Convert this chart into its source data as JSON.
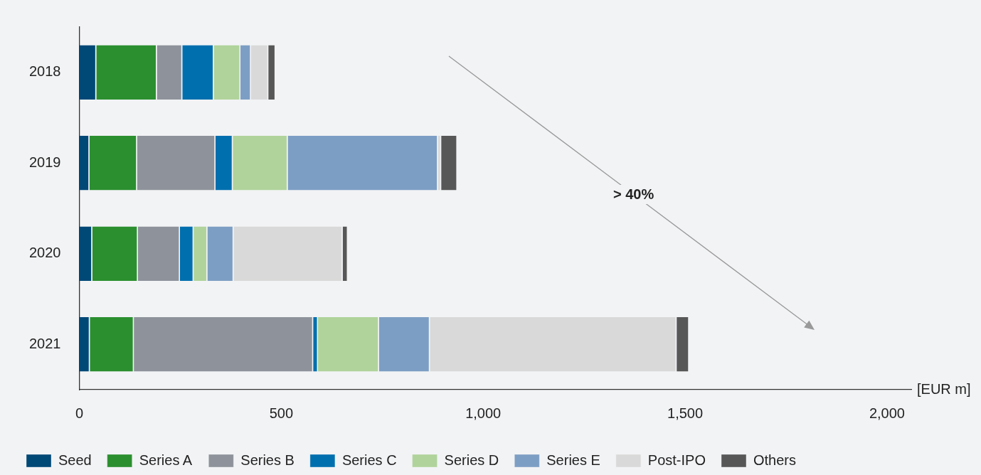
{
  "chart_data": {
    "type": "bar",
    "orientation": "horizontal",
    "stacked": true,
    "xlabel": "[EUR m]",
    "categories": [
      "2018",
      "2019",
      "2020",
      "2021"
    ],
    "series": [
      {
        "name": "Seed",
        "color": "#004876",
        "values": [
          42,
          25,
          32,
          26
        ]
      },
      {
        "name": "Series A",
        "color": "#2b8f2f",
        "values": [
          150,
          118,
          113,
          109
        ]
      },
      {
        "name": "Series B",
        "color": "#8e939b",
        "values": [
          63,
          194,
          104,
          444
        ]
      },
      {
        "name": "Series C",
        "color": "#006fae",
        "values": [
          78,
          43,
          34,
          12
        ]
      },
      {
        "name": "Series D",
        "color": "#b0d39b",
        "values": [
          66,
          136,
          34,
          151
        ]
      },
      {
        "name": "Series E",
        "color": "#7d9ec4",
        "values": [
          26,
          372,
          65,
          126
        ]
      },
      {
        "name": "Post-IPO",
        "color": "#d9d9d9",
        "values": [
          43,
          8,
          270,
          611
        ]
      },
      {
        "name": "Others",
        "color": "#575757",
        "values": [
          18,
          40,
          13,
          31
        ]
      }
    ],
    "xlim": [
      0,
      2060
    ],
    "xticks": [
      0,
      {
        "value": 500,
        "label": "500"
      },
      {
        "value": 1000,
        "label": "1,000"
      },
      {
        "value": 1500,
        "label": "1,500"
      },
      {
        "value": 2000,
        "label": "2,000"
      }
    ],
    "grid": false,
    "legend": "bottom",
    "annotations": [
      "> 40%"
    ]
  }
}
